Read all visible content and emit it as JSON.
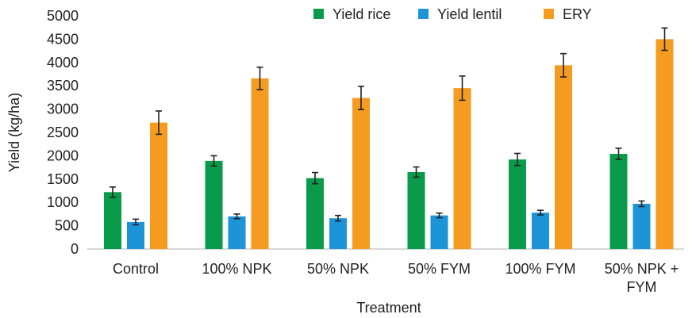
{
  "chart_data": {
    "type": "bar",
    "title": "",
    "xlabel": "Treatment",
    "ylabel": "Yield (kg/ha)",
    "ylim": [
      0,
      5000
    ],
    "yticks": [
      0,
      500,
      1000,
      1500,
      2000,
      2500,
      3000,
      3500,
      4000,
      4500,
      5000
    ],
    "grid": false,
    "legend_position": "top-right",
    "categories": [
      [
        "Control"
      ],
      [
        "100% NPK"
      ],
      [
        "50% NPK"
      ],
      [
        "50% FYM"
      ],
      [
        "100% FYM"
      ],
      [
        "50% NPK +",
        "FYM"
      ]
    ],
    "series": [
      {
        "name": "Yield rice",
        "color": "#0a9b4a",
        "values": [
          1220,
          1890,
          1520,
          1650,
          1920,
          2040
        ],
        "errors": [
          110,
          110,
          120,
          110,
          130,
          120
        ]
      },
      {
        "name": "Yield lentil",
        "color": "#1d94d8",
        "values": [
          580,
          700,
          660,
          720,
          780,
          970
        ],
        "errors": [
          60,
          50,
          60,
          50,
          50,
          60
        ]
      },
      {
        "name": "ERY",
        "color": "#f59b1f",
        "values": [
          2710,
          3660,
          3240,
          3450,
          3940,
          4500
        ],
        "errors": [
          250,
          240,
          250,
          260,
          250,
          240
        ]
      }
    ]
  }
}
